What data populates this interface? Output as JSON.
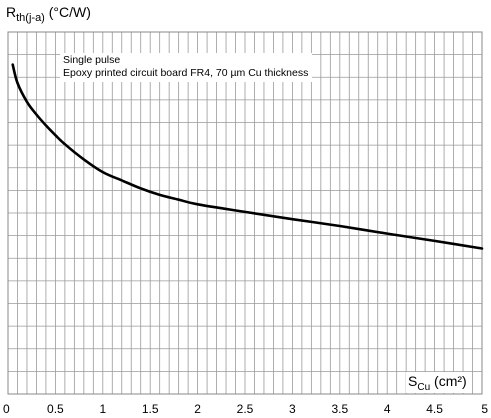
{
  "chart_data": {
    "type": "line",
    "ylabel_main": "R",
    "ylabel_sub": "th(j-a)",
    "ylabel_unit": " (°C/W)",
    "xlabel_main": "S",
    "xlabel_sub": "Cu",
    "xlabel_unit": " (cm²)",
    "annotations": [
      "Single pulse",
      "Epoxy printed circuit board FR4, 70 µm Cu thickness"
    ],
    "x_ticks": [
      "0",
      "0.5",
      "1",
      "1.5",
      "2",
      "2.5",
      "3",
      "3.5",
      "4",
      "4.5",
      "5"
    ],
    "xlim": [
      0,
      5
    ],
    "y_tick_labels_shown": false,
    "grid": true,
    "y_scale_note": "no y tick labels printed; curve values below are in fractions of plot height (0 = bottom, 1 = top)",
    "series": [
      {
        "x": [
          0.05,
          0.1,
          0.2,
          0.3,
          0.4,
          0.5,
          0.6,
          0.8,
          1.0,
          1.2,
          1.4,
          1.6,
          1.8,
          2.0,
          2.5,
          3.0,
          3.5,
          4.0,
          4.5,
          5.0
        ],
        "y": [
          0.91,
          0.859,
          0.807,
          0.772,
          0.742,
          0.715,
          0.69,
          0.648,
          0.613,
          0.59,
          0.568,
          0.55,
          0.537,
          0.524,
          0.503,
          0.483,
          0.464,
          0.443,
          0.423,
          0.402
        ],
        "color": "#000000"
      }
    ]
  }
}
